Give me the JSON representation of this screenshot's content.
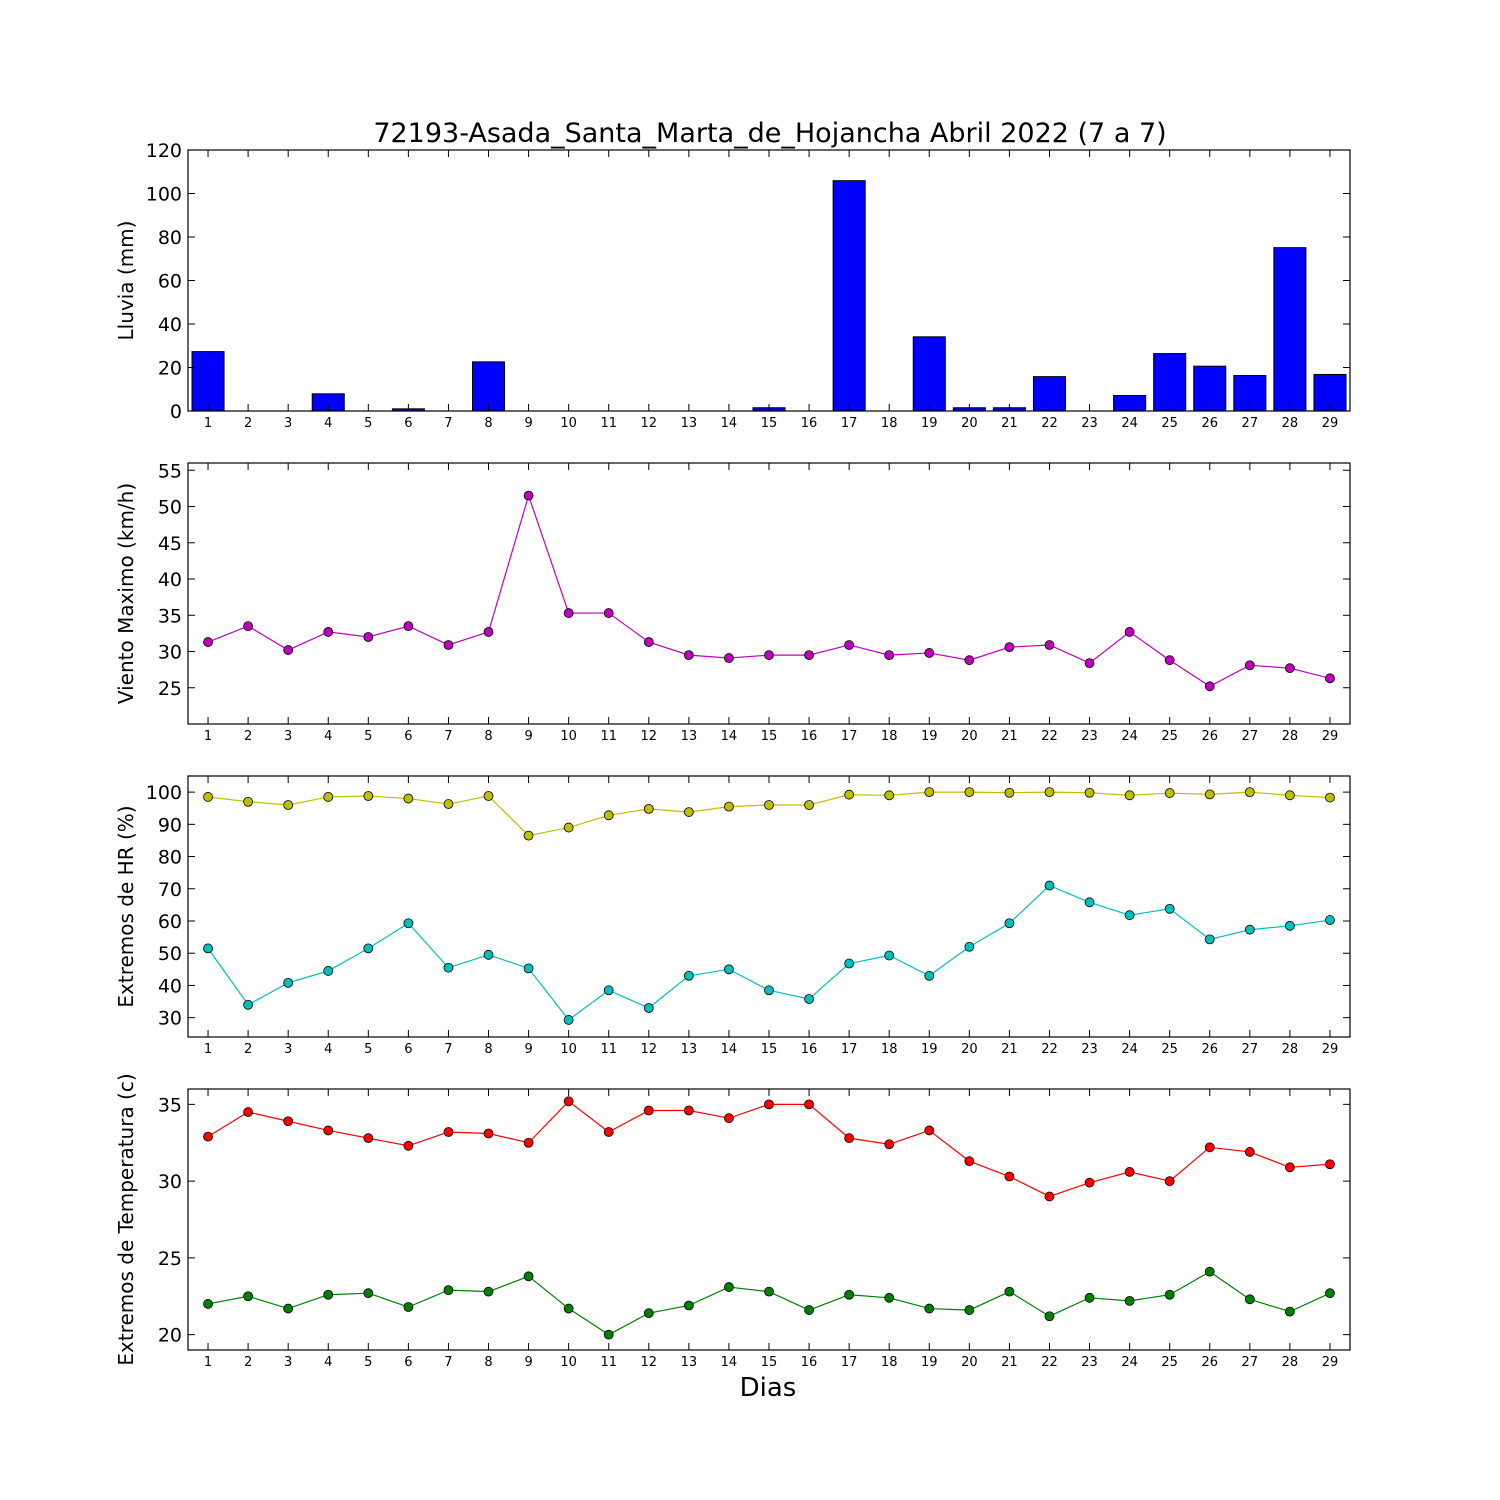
{
  "title": "72193-Asada_Santa_Marta_de_Hojancha Abril 2022  (7 a 7)",
  "xlabel": "Dias",
  "chart_data": [
    {
      "type": "bar",
      "ylabel": "Lluvia (mm)",
      "ylim": [
        0,
        120
      ],
      "yticks": [
        0,
        20,
        40,
        60,
        80,
        100,
        120
      ],
      "x": [
        1,
        2,
        3,
        4,
        5,
        6,
        7,
        8,
        9,
        10,
        11,
        12,
        13,
        14,
        15,
        16,
        17,
        18,
        19,
        20,
        21,
        22,
        23,
        24,
        25,
        26,
        27,
        28,
        29
      ],
      "series": [
        {
          "values": [
            27.3,
            0,
            0,
            7.9,
            0,
            1.0,
            0,
            22.6,
            0,
            0,
            0,
            0,
            0,
            0,
            1.5,
            0,
            105.9,
            0,
            34.1,
            1.5,
            1.5,
            15.8,
            0,
            7.1,
            26.4,
            20.6,
            16.3,
            75.1,
            16.8
          ],
          "color": "#0000ff"
        }
      ],
      "grid": false
    },
    {
      "type": "line",
      "ylabel": "Viento Maximo (km/h)",
      "ylim": [
        20,
        56
      ],
      "yticks": [
        25,
        30,
        35,
        40,
        45,
        50,
        55
      ],
      "x": [
        1,
        2,
        3,
        4,
        5,
        6,
        7,
        8,
        9,
        10,
        11,
        12,
        13,
        14,
        15,
        16,
        17,
        18,
        19,
        20,
        21,
        22,
        23,
        24,
        25,
        26,
        27,
        28,
        29
      ],
      "series": [
        {
          "values": [
            31.3,
            33.5,
            30.2,
            32.7,
            32.0,
            33.5,
            30.9,
            32.7,
            51.5,
            35.3,
            35.3,
            31.3,
            29.5,
            29.1,
            29.5,
            29.5,
            30.9,
            29.5,
            29.8,
            28.8,
            30.6,
            30.9,
            28.4,
            32.7,
            28.8,
            25.2,
            28.1,
            27.7,
            26.3
          ],
          "color": "#bf00bf"
        }
      ],
      "grid": false
    },
    {
      "type": "line",
      "ylabel": "Extremos de HR (%)",
      "ylim": [
        24,
        105
      ],
      "yticks": [
        30,
        40,
        50,
        60,
        70,
        80,
        90,
        100
      ],
      "x": [
        1,
        2,
        3,
        4,
        5,
        6,
        7,
        8,
        9,
        10,
        11,
        12,
        13,
        14,
        15,
        16,
        17,
        18,
        19,
        20,
        21,
        22,
        23,
        24,
        25,
        26,
        27,
        28,
        29
      ],
      "series": [
        {
          "values": [
            98.5,
            97.0,
            96.0,
            98.5,
            98.8,
            98.0,
            96.3,
            98.8,
            86.5,
            89.0,
            92.8,
            94.8,
            93.8,
            95.5,
            96.0,
            96.0,
            99.2,
            99.0,
            100,
            100,
            99.8,
            100,
            99.8,
            99.0,
            99.7,
            99.3,
            100,
            99.0,
            98.3
          ],
          "color": "#bfbf00"
        },
        {
          "values": [
            51.5,
            34.0,
            40.8,
            44.5,
            51.5,
            59.3,
            45.5,
            49.5,
            45.3,
            29.3,
            38.5,
            33.0,
            43.0,
            45.0,
            38.5,
            35.8,
            46.8,
            49.3,
            43.0,
            52.0,
            59.3,
            71.0,
            65.8,
            61.8,
            63.8,
            54.3,
            57.3,
            58.5,
            60.3
          ],
          "color": "#00bfbf"
        }
      ],
      "grid": false
    },
    {
      "type": "line",
      "ylabel": "Extremos de Temperatura (c)",
      "ylim": [
        19,
        36
      ],
      "yticks": [
        20,
        25,
        30,
        35
      ],
      "x": [
        1,
        2,
        3,
        4,
        5,
        6,
        7,
        8,
        9,
        10,
        11,
        12,
        13,
        14,
        15,
        16,
        17,
        18,
        19,
        20,
        21,
        22,
        23,
        24,
        25,
        26,
        27,
        28,
        29
      ],
      "series": [
        {
          "values": [
            32.9,
            34.5,
            33.9,
            33.3,
            32.8,
            32.3,
            33.2,
            33.1,
            32.5,
            35.2,
            33.2,
            34.6,
            34.6,
            34.1,
            35.0,
            35.0,
            32.8,
            32.4,
            33.3,
            31.3,
            30.3,
            29.0,
            29.9,
            30.6,
            30.0,
            32.2,
            31.9,
            30.9,
            31.1
          ],
          "color": "#ff0000"
        },
        {
          "values": [
            22.0,
            22.5,
            21.7,
            22.6,
            22.7,
            21.8,
            22.9,
            22.8,
            23.8,
            21.7,
            20.0,
            21.4,
            21.9,
            23.1,
            22.8,
            21.6,
            22.6,
            22.4,
            21.7,
            21.6,
            22.8,
            21.2,
            22.4,
            22.2,
            22.6,
            24.1,
            22.3,
            21.5,
            22.7
          ],
          "color": "#008000"
        }
      ],
      "grid": false
    }
  ]
}
